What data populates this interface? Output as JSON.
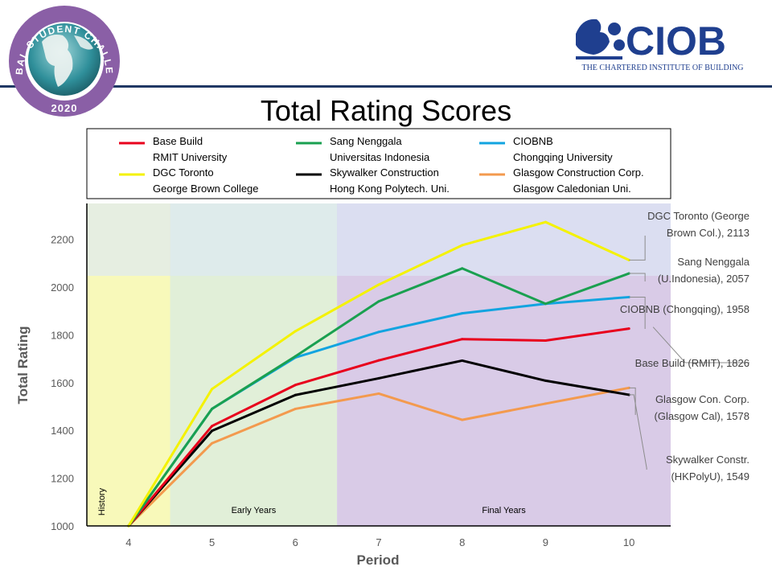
{
  "header": {
    "badge_text": "GLOBAL STUDENT CHALLENGE",
    "badge_year": "2020",
    "logo_text": "CIOB",
    "logo_subtitle": "THE CHARTERED INSTITUTE OF BUILDING"
  },
  "colors": {
    "header_rule": "#203864",
    "ciob_blue": "#1f3f8f",
    "badge_purple": "#8a5fa6"
  },
  "chart_data": {
    "type": "line",
    "title": "Total Rating Scores",
    "xlabel": "Period",
    "ylabel": "Total Rating",
    "x": [
      4,
      5,
      6,
      7,
      8,
      9,
      10
    ],
    "ylim": [
      1000,
      2350
    ],
    "yticks": [
      1000,
      1200,
      1400,
      1600,
      1800,
      2000,
      2200
    ],
    "regions": [
      {
        "label": "History",
        "start": 3.5,
        "end": 4.5,
        "color": "#fbfbb4",
        "vertical": true
      },
      {
        "label": "Early Years",
        "start": 4.5,
        "end": 6.5,
        "color": "#e1f0d5",
        "vertical": false
      },
      {
        "label": "Final Years",
        "start": 6.5,
        "end": 10.5,
        "color": "#d8c8e6",
        "vertical": false
      }
    ],
    "series": [
      {
        "name": "Base Build",
        "org": "RMIT University",
        "color": "#e8001c",
        "values": [
          1000,
          1418,
          1590,
          1693,
          1782,
          1776,
          1826
        ],
        "annotation": [
          "Base Build (RMIT), 1826"
        ]
      },
      {
        "name": "Sang Nenggala",
        "org": "Universitas Indonesia",
        "color": "#1aa050",
        "values": [
          1000,
          1490,
          1710,
          1940,
          2078,
          1930,
          2057
        ],
        "annotation": [
          "Sang Nenggala",
          "(U.Indonesia), 2057"
        ]
      },
      {
        "name": "CIOBNB",
        "org": "Chongqing University",
        "color": "#12a4e0",
        "values": [
          1000,
          1490,
          1705,
          1812,
          1890,
          1930,
          1958
        ],
        "annotation": [
          "CIOBNB (Chongqing), 1958"
        ]
      },
      {
        "name": "DGC Toronto",
        "org": "George Brown College",
        "color": "#f4f200",
        "values": [
          1000,
          1573,
          1815,
          2010,
          2175,
          2272,
          2113
        ],
        "annotation": [
          "DGC Toronto  (George",
          "Brown Col.), 2113"
        ]
      },
      {
        "name": "Skywalker Construction",
        "org": "Hong Kong Polytech. Uni.",
        "color": "#000000",
        "values": [
          1000,
          1398,
          1548,
          1618,
          1692,
          1608,
          1549
        ],
        "annotation": [
          "Skywalker Constr.",
          "(HKPolyU), 1549"
        ]
      },
      {
        "name": "Glasgow Construction Corp.",
        "org": "Glasgow Caledonian Uni.",
        "color": "#f39a4e",
        "values": [
          1000,
          1346,
          1490,
          1554,
          1444,
          1512,
          1578
        ],
        "annotation": [
          "Glasgow Con. Corp.",
          "(Glasgow Cal), 1578"
        ]
      }
    ]
  }
}
